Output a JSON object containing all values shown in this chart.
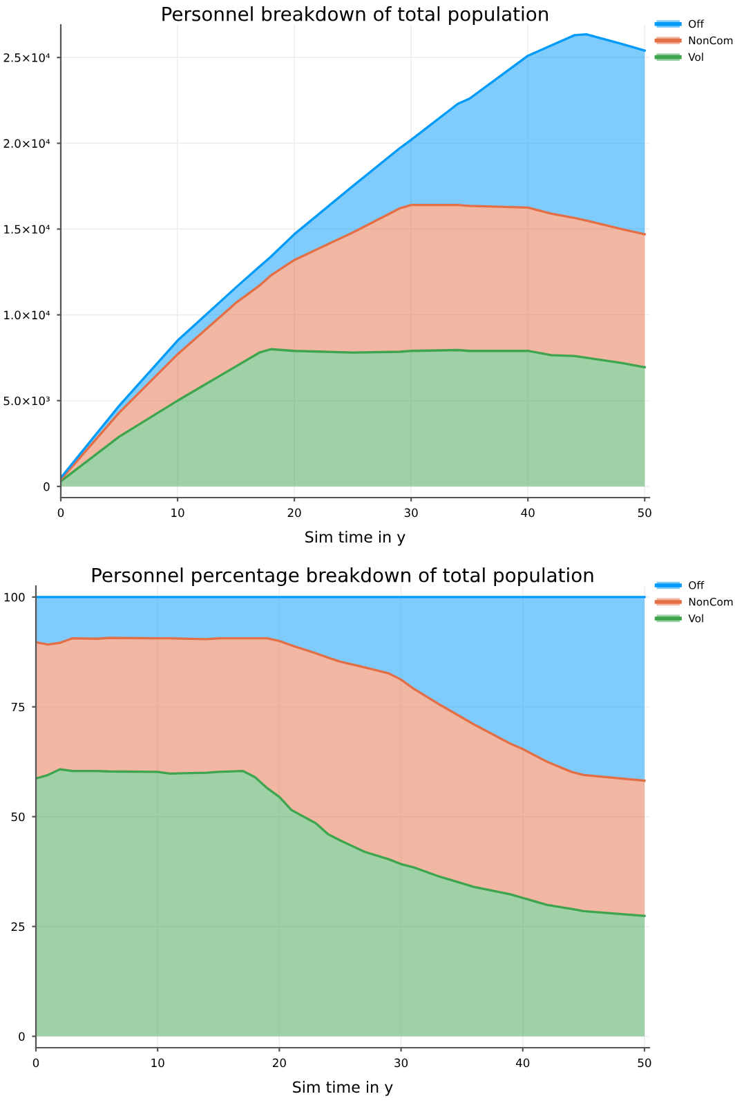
{
  "chart_data": [
    {
      "type": "area",
      "stacked": true,
      "title": "Personnel breakdown of total population",
      "xlabel": "Sim time in y",
      "x": [
        0,
        5,
        10,
        15,
        17,
        18,
        20,
        25,
        29,
        30,
        34,
        35,
        40,
        42,
        44,
        45,
        48,
        50
      ],
      "series": [
        {
          "name": "Vol",
          "color": "#3ea44e",
          "values": [
            300,
            2900,
            5000,
            7000,
            7800,
            8000,
            7900,
            7800,
            7850,
            7900,
            7950,
            7900,
            7900,
            7650,
            7600,
            7500,
            7200,
            6950
          ]
        },
        {
          "name": "NonCom",
          "color": "#e36f47",
          "values": [
            100,
            1400,
            2700,
            3700,
            3900,
            4300,
            5300,
            7000,
            8350,
            8500,
            8450,
            8450,
            8350,
            8250,
            8050,
            8000,
            7800,
            7750
          ]
        },
        {
          "name": "Off",
          "color": "#009af9",
          "values": [
            100,
            400,
            800,
            900,
            1100,
            1100,
            1500,
            2700,
            3500,
            3800,
            5900,
            6250,
            8850,
            9800,
            10650,
            10850,
            10800,
            10700
          ]
        }
      ],
      "xlim": [
        0,
        50.4
      ],
      "ylim": [
        -650,
        26900
      ],
      "xticks": [
        0,
        10,
        20,
        30,
        40,
        50
      ],
      "yticks": [
        0,
        {
          "value": 5000,
          "label": "5.0×10³"
        },
        {
          "value": 10000,
          "label": "1.0×10⁴"
        },
        {
          "value": 15000,
          "label": "1.5×10⁴"
        },
        {
          "value": 20000,
          "label": "2.0×10⁴"
        },
        {
          "value": 25000,
          "label": "2.5×10⁴"
        }
      ],
      "grid": true,
      "legend": "top right"
    },
    {
      "type": "area",
      "stacked": true,
      "title": "Personnel percentage breakdown of total population",
      "xlabel": "Sim time in y",
      "x": [
        0,
        1,
        2,
        3,
        5,
        6,
        10,
        11,
        14,
        15,
        17,
        18,
        19,
        20,
        21,
        23,
        24,
        25,
        27,
        29,
        30,
        31,
        33,
        36,
        39,
        40,
        42,
        44,
        45,
        50
      ],
      "series": [
        {
          "name": "Vol",
          "color": "#3ea44e",
          "values": [
            58.7,
            59.5,
            60.8,
            60.4,
            60.4,
            60.3,
            60.2,
            59.8,
            60,
            60.2,
            60.4,
            59,
            56.5,
            54.5,
            51.5,
            48.5,
            46,
            44.6,
            42,
            40.3,
            39.2,
            38.5,
            36.5,
            34,
            32.3,
            31.5,
            29.9,
            29,
            28.5,
            27.4
          ]
        },
        {
          "name": "NonCom",
          "color": "#e36f47",
          "values": [
            31.0,
            29.7,
            28.8,
            30.2,
            30.1,
            30.4,
            30.4,
            30.8,
            30.4,
            30.4,
            30.2,
            31.6,
            34.1,
            35.5,
            37.5,
            38.7,
            40.2,
            40.7,
            42.0,
            42.3,
            42.0,
            40.7,
            39.3,
            37.0,
            34.3,
            33.9,
            32.6,
            31.2,
            31.0,
            30.8
          ]
        },
        {
          "name": "Off",
          "color": "#009af9",
          "values": [
            10.3,
            10.8,
            10.4,
            9.4,
            9.5,
            9.3,
            9.4,
            9.4,
            9.6,
            9.4,
            9.4,
            9.4,
            9.4,
            10,
            11,
            12.8,
            13.8,
            14.7,
            16,
            17.4,
            18.8,
            20.8,
            24.2,
            29,
            33.4,
            34.6,
            37.5,
            39.8,
            40.5,
            41.8
          ]
        }
      ],
      "xlim": [
        0,
        50.4
      ],
      "ylim": [
        -2.6,
        102.5
      ],
      "xticks": [
        0,
        10,
        20,
        30,
        40,
        50
      ],
      "yticks": [
        0,
        25,
        50,
        75,
        100
      ],
      "grid": true,
      "legend": "top right"
    }
  ]
}
